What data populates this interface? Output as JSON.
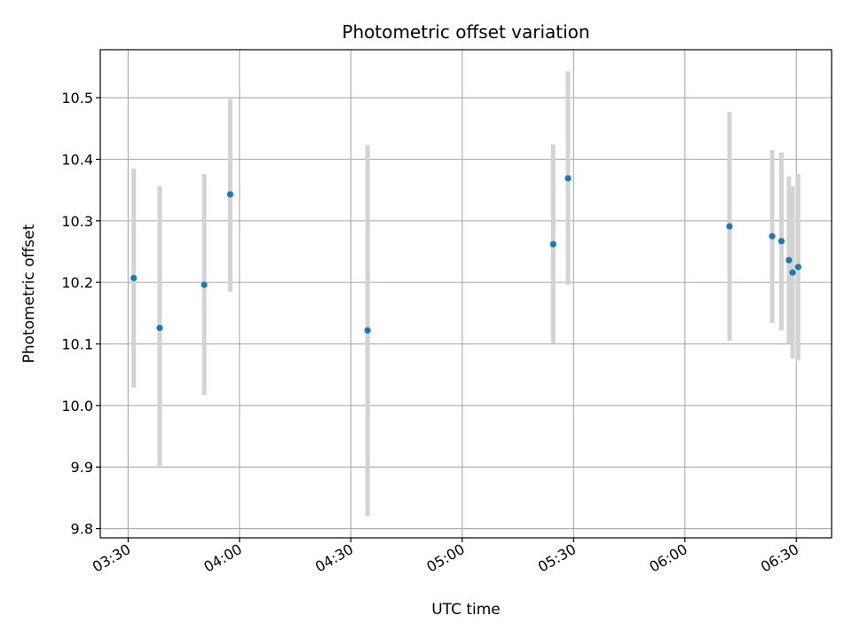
{
  "chart_data": {
    "type": "scatter",
    "title": "Photometric offset variation",
    "xlabel": "UTC time",
    "ylabel": "Photometric offset",
    "x_axis_type": "time",
    "xlim": [
      "03:22:30",
      "06:39:30"
    ],
    "ylim": [
      9.785,
      10.578
    ],
    "grid": true,
    "x_ticks": [
      "03:30",
      "04:00",
      "04:30",
      "05:00",
      "05:30",
      "06:00",
      "06:30"
    ],
    "y_ticks": [
      9.8,
      9.9,
      10.0,
      10.1,
      10.2,
      10.3,
      10.4,
      10.5
    ],
    "y_tick_labels": [
      "9.8",
      "9.9",
      "10.0",
      "10.1",
      "10.2",
      "10.3",
      "10.4",
      "10.5"
    ],
    "point_color": "#1f77b4",
    "errorbar_color": "#d3d3d3",
    "points": [
      {
        "time": "03:31:30",
        "value": 10.207,
        "err_low": 10.029,
        "err_high": 10.385
      },
      {
        "time": "03:38:30",
        "value": 10.126,
        "err_low": 9.898,
        "err_high": 10.357
      },
      {
        "time": "03:50:30",
        "value": 10.196,
        "err_low": 10.017,
        "err_high": 10.376
      },
      {
        "time": "03:57:30",
        "value": 10.343,
        "err_low": 10.185,
        "err_high": 10.498
      },
      {
        "time": "04:34:30",
        "value": 10.122,
        "err_low": 9.82,
        "err_high": 10.423
      },
      {
        "time": "05:24:30",
        "value": 10.262,
        "err_low": 10.1,
        "err_high": 10.424
      },
      {
        "time": "05:28:30",
        "value": 10.369,
        "err_low": 10.196,
        "err_high": 10.543
      },
      {
        "time": "06:12:00",
        "value": 10.291,
        "err_low": 10.105,
        "err_high": 10.477
      },
      {
        "time": "06:23:30",
        "value": 10.275,
        "err_low": 10.134,
        "err_high": 10.415
      },
      {
        "time": "06:26:00",
        "value": 10.267,
        "err_low": 10.122,
        "err_high": 10.411
      },
      {
        "time": "06:28:00",
        "value": 10.236,
        "err_low": 10.1,
        "err_high": 10.372
      },
      {
        "time": "06:29:00",
        "value": 10.216,
        "err_low": 10.076,
        "err_high": 10.356
      },
      {
        "time": "06:30:30",
        "value": 10.225,
        "err_low": 10.073,
        "err_high": 10.376
      }
    ]
  }
}
